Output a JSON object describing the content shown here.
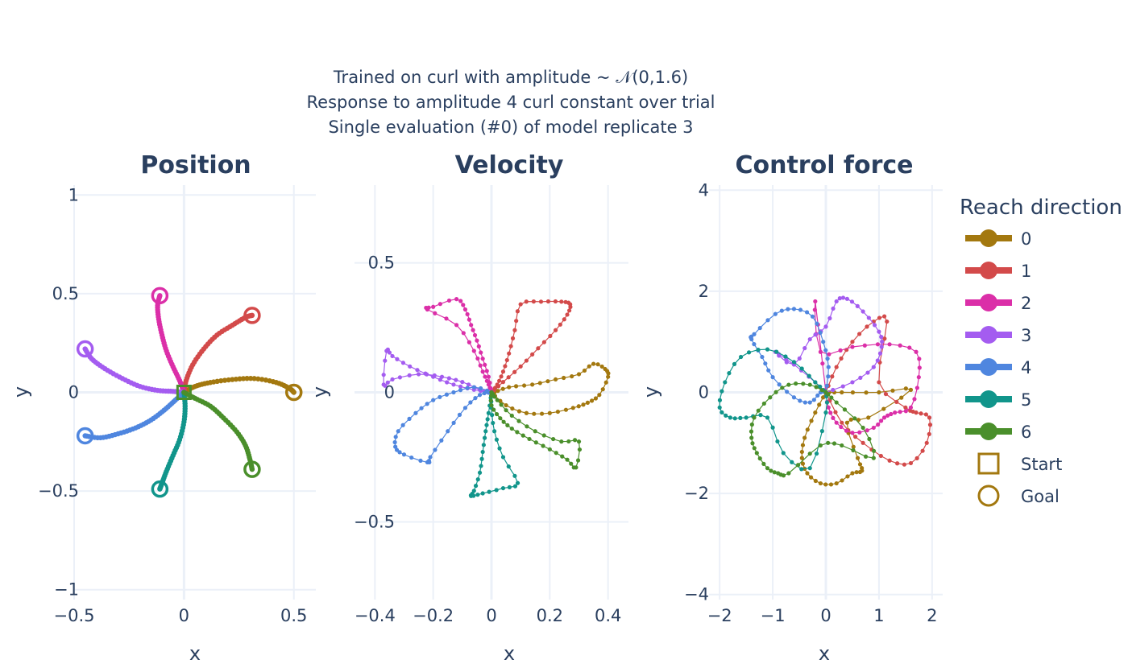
{
  "title_lines": [
    "Trained on curl with amplitude ~ 𝒩(0,1.6)",
    "Response to amplitude 4 curl constant over trial",
    "Single evaluation (#0) of model replicate 3"
  ],
  "colors": {
    "0": "#a3780f",
    "1": "#d34a4a",
    "2": "#db2fa8",
    "3": "#a45cf0",
    "4": "#4f86df",
    "5": "#11958b",
    "6": "#4a8f2b",
    "grid": "#ebf0f8",
    "zeroline": "#ebf0f8",
    "text": "#2a3f5f"
  },
  "legend": {
    "title": "Reach direction",
    "items": [
      {
        "label": "0",
        "symbol": "line",
        "color_key": "0"
      },
      {
        "label": "1",
        "symbol": "line",
        "color_key": "1"
      },
      {
        "label": "2",
        "symbol": "line",
        "color_key": "2"
      },
      {
        "label": "3",
        "symbol": "line",
        "color_key": "3"
      },
      {
        "label": "4",
        "symbol": "line",
        "color_key": "4"
      },
      {
        "label": "5",
        "symbol": "line",
        "color_key": "5"
      },
      {
        "label": "6",
        "symbol": "line",
        "color_key": "6"
      },
      {
        "label": "Start",
        "symbol": "square",
        "color_key": "0"
      },
      {
        "label": "Goal",
        "symbol": "circle",
        "color_key": "0"
      }
    ]
  },
  "chart_data": [
    {
      "type": "line",
      "title": "Position",
      "xlabel": "x",
      "ylabel": "y",
      "xlim": [
        -0.5,
        0.6
      ],
      "ylim": [
        -1.05,
        1.05
      ],
      "xticks": [
        -0.5,
        0,
        0.5
      ],
      "xtick_labels": [
        "−0.5",
        "0",
        "0.5"
      ],
      "yticks": [
        -1,
        -0.5,
        0,
        0.5,
        1
      ],
      "ytick_labels": [
        "−1",
        "−0.5",
        "0",
        "0.5",
        "1"
      ],
      "grid": true,
      "series": [
        {
          "name": "0",
          "x": [
            0,
            0.05,
            0.12,
            0.22,
            0.32,
            0.42,
            0.48,
            0.5
          ],
          "y": [
            0,
            0.03,
            0.05,
            0.065,
            0.07,
            0.05,
            0.02,
            0
          ],
          "goal": [
            0.5,
            0
          ]
        },
        {
          "name": "1",
          "x": [
            0,
            0.01,
            0.04,
            0.09,
            0.15,
            0.22,
            0.28,
            0.31
          ],
          "y": [
            0,
            0.06,
            0.14,
            0.22,
            0.29,
            0.34,
            0.38,
            0.39
          ],
          "goal": [
            0.31,
            0.39
          ]
        },
        {
          "name": "2",
          "x": [
            0,
            -0.02,
            -0.05,
            -0.08,
            -0.1,
            -0.115,
            -0.12,
            -0.11
          ],
          "y": [
            0,
            0.06,
            0.13,
            0.21,
            0.29,
            0.37,
            0.44,
            0.49
          ],
          "goal": [
            -0.11,
            0.49
          ]
        },
        {
          "name": "3",
          "x": [
            0,
            -0.05,
            -0.12,
            -0.2,
            -0.28,
            -0.36,
            -0.42,
            -0.45
          ],
          "y": [
            0,
            0.005,
            0.01,
            0.03,
            0.07,
            0.12,
            0.17,
            0.22
          ],
          "goal": [
            -0.45,
            0.22
          ]
        },
        {
          "name": "4",
          "x": [
            0,
            -0.04,
            -0.09,
            -0.15,
            -0.22,
            -0.3,
            -0.38,
            -0.45
          ],
          "y": [
            0,
            -0.04,
            -0.09,
            -0.14,
            -0.18,
            -0.21,
            -0.23,
            -0.22
          ],
          "goal": [
            -0.45,
            -0.22
          ]
        },
        {
          "name": "5",
          "x": [
            0,
            0.005,
            0.0,
            -0.02,
            -0.05,
            -0.08,
            -0.1,
            -0.11
          ],
          "y": [
            0,
            -0.07,
            -0.15,
            -0.24,
            -0.32,
            -0.4,
            -0.46,
            -0.49
          ],
          "goal": [
            -0.11,
            -0.49
          ]
        },
        {
          "name": "6",
          "x": [
            0,
            0.05,
            0.12,
            0.18,
            0.24,
            0.28,
            0.3,
            0.31
          ],
          "y": [
            0,
            -0.03,
            -0.07,
            -0.13,
            -0.2,
            -0.27,
            -0.34,
            -0.39
          ],
          "goal": [
            0.31,
            -0.39
          ]
        }
      ]
    },
    {
      "type": "line",
      "title": "Velocity",
      "xlabel": "x",
      "ylabel": "y",
      "xlim": [
        -0.47,
        0.47
      ],
      "ylim": [
        -0.8,
        0.8
      ],
      "xticks": [
        -0.4,
        -0.2,
        0,
        0.2,
        0.4
      ],
      "xtick_labels": [
        "−0.4",
        "−0.2",
        "0",
        "0.2",
        "0.4"
      ],
      "yticks": [
        -0.5,
        0,
        0.5
      ],
      "ytick_labels": [
        "−0.5",
        "0",
        "0.5"
      ],
      "grid": true,
      "series": [
        {
          "name": "0",
          "x": [
            0,
            0.05,
            0.12,
            0.2,
            0.28,
            0.33,
            0.37,
            0.4,
            0.39,
            0.35,
            0.3,
            0.22,
            0.14,
            0.06,
            0.01
          ],
          "y": [
            0,
            -0.05,
            -0.08,
            -0.08,
            -0.06,
            -0.04,
            -0.01,
            0.06,
            0.09,
            0.11,
            0.07,
            0.05,
            0.03,
            0.02,
            0
          ]
        },
        {
          "name": "1",
          "x": [
            0,
            0.04,
            0.1,
            0.16,
            0.22,
            0.26,
            0.27,
            0.24,
            0.17,
            0.1,
            0.08,
            0.06,
            0.04,
            0.02,
            0.0
          ],
          "y": [
            0,
            0.04,
            0.1,
            0.17,
            0.24,
            0.3,
            0.34,
            0.35,
            0.35,
            0.34,
            0.24,
            0.15,
            0.08,
            0.03,
            0
          ]
        },
        {
          "name": "2",
          "x": [
            0,
            -0.01,
            -0.03,
            -0.05,
            -0.07,
            -0.09,
            -0.12,
            -0.2,
            -0.22,
            -0.12,
            -0.06,
            -0.03,
            -0.01,
            0.0
          ],
          "y": [
            0,
            0.06,
            0.13,
            0.2,
            0.26,
            0.32,
            0.36,
            0.33,
            0.32,
            0.26,
            0.16,
            0.08,
            0.03,
            0
          ]
        },
        {
          "name": "3",
          "x": [
            0,
            -0.06,
            -0.13,
            -0.2,
            -0.28,
            -0.34,
            -0.36,
            -0.37,
            -0.34,
            -0.25,
            -0.17,
            -0.1,
            -0.04,
            0.0
          ],
          "y": [
            0,
            0.01,
            0.03,
            0.06,
            0.1,
            0.14,
            0.16,
            0.03,
            0.05,
            0.07,
            0.06,
            0.04,
            0.01,
            0
          ]
        },
        {
          "name": "4",
          "x": [
            0,
            -0.06,
            -0.13,
            -0.2,
            -0.26,
            -0.32,
            -0.33,
            -0.3,
            -0.22,
            -0.21,
            -0.15,
            -0.09,
            -0.04,
            0.0
          ],
          "y": [
            0,
            0.02,
            0.0,
            -0.03,
            -0.08,
            -0.15,
            -0.21,
            -0.24,
            -0.27,
            -0.25,
            -0.15,
            -0.06,
            -0.01,
            0
          ]
        },
        {
          "name": "5",
          "x": [
            0,
            -0.01,
            -0.02,
            -0.03,
            -0.04,
            -0.06,
            -0.07,
            -0.03,
            0.04,
            0.09,
            0.04,
            0.01,
            0.0,
            0.0
          ],
          "y": [
            0,
            -0.08,
            -0.15,
            -0.23,
            -0.31,
            -0.38,
            -0.4,
            -0.39,
            -0.37,
            -0.35,
            -0.25,
            -0.15,
            -0.06,
            0
          ]
        },
        {
          "name": "6",
          "x": [
            0,
            0.0,
            0.03,
            0.07,
            0.13,
            0.2,
            0.26,
            0.29,
            0.3,
            0.24,
            0.15,
            0.07,
            0.02,
            0.0
          ],
          "y": [
            0,
            -0.05,
            -0.1,
            -0.14,
            -0.18,
            -0.22,
            -0.26,
            -0.29,
            -0.19,
            -0.19,
            -0.15,
            -0.09,
            -0.03,
            0
          ]
        }
      ]
    },
    {
      "type": "line",
      "title": "Control force",
      "xlabel": "x",
      "ylabel": "y",
      "xlim": [
        -2.2,
        2.2
      ],
      "ylim": [
        -4.1,
        4.1
      ],
      "xticks": [
        -2,
        -1,
        0,
        1,
        2
      ],
      "xtick_labels": [
        "−2",
        "−1",
        "0",
        "1",
        "2"
      ],
      "yticks": [
        -4,
        -2,
        0,
        2,
        4
      ],
      "ytick_labels": [
        "−4",
        "−2",
        "0",
        "2",
        "4"
      ],
      "grid": true,
      "series": [
        {
          "name": "0",
          "x": [
            0,
            -0.2,
            -0.4,
            -0.45,
            -0.35,
            -0.1,
            0.2,
            0.5,
            0.68,
            0.6,
            0.4,
            0.8,
            1.6,
            1.0,
            0.3,
            0
          ],
          "y": [
            0,
            -0.4,
            -0.9,
            -1.3,
            -1.6,
            -1.8,
            -1.8,
            -1.6,
            -1.55,
            -1.3,
            -0.6,
            -0.5,
            0.05,
            0.0,
            0.0,
            0
          ]
        },
        {
          "name": "1",
          "x": [
            0,
            0.3,
            0.7,
            1.2,
            1.6,
            1.9,
            1.95,
            1.7,
            1.5,
            1.0,
            1.15,
            0.9,
            0.5,
            0.2,
            0
          ],
          "y": [
            0,
            -0.6,
            -1.0,
            -1.35,
            -1.4,
            -1.0,
            -0.5,
            -0.4,
            -0.3,
            0.2,
            1.4,
            1.4,
            1.0,
            0.5,
            0
          ]
        },
        {
          "name": "2",
          "x": [
            0,
            0.05,
            0.2,
            0.5,
            0.9,
            1.1,
            1.3,
            1.6,
            1.75,
            1.7,
            1.2,
            0.5,
            -0.1,
            -0.2,
            0
          ],
          "y": [
            0,
            -0.3,
            -0.6,
            -0.8,
            -0.7,
            -0.5,
            -0.4,
            -0.3,
            0.3,
            0.8,
            0.95,
            0.9,
            0.8,
            1.8,
            0
          ]
        },
        {
          "name": "3",
          "x": [
            0,
            0.5,
            0.9,
            1.05,
            1.0,
            0.7,
            0.4,
            0.2,
            0.0,
            -0.3,
            -0.6,
            -0.95,
            -0.6,
            -0.2,
            0
          ],
          "y": [
            0,
            0.2,
            0.5,
            0.9,
            1.2,
            1.6,
            1.85,
            1.8,
            1.3,
            1.05,
            0.55,
            0.8,
            0.55,
            0.2,
            0
          ]
        },
        {
          "name": "4",
          "x": [
            0,
            0.05,
            -0.05,
            -0.25,
            -0.6,
            -0.95,
            -1.35,
            -1.4,
            -1.2,
            -1.0,
            -0.6,
            -0.3,
            -0.1,
            0
          ],
          "y": [
            0,
            0.5,
            1.0,
            1.5,
            1.65,
            1.55,
            1.15,
            1.05,
            0.7,
            0.3,
            -0.1,
            -0.2,
            0.0,
            0
          ]
        },
        {
          "name": "5",
          "x": [
            0,
            -0.2,
            -0.6,
            -1.1,
            -1.6,
            -1.9,
            -2.0,
            -1.8,
            -1.5,
            -1.1,
            -0.8,
            -0.3,
            0.0,
            0
          ],
          "y": [
            0,
            0.2,
            0.6,
            0.85,
            0.7,
            0.2,
            -0.3,
            -0.5,
            -0.5,
            -0.5,
            -1.2,
            -1.5,
            -0.4,
            0
          ]
        },
        {
          "name": "6",
          "x": [
            0,
            -0.3,
            -0.7,
            -1.05,
            -1.35,
            -1.4,
            -1.3,
            -1.1,
            -0.9,
            -0.7,
            -0.1,
            0.3,
            0.9,
            0.7,
            0.2,
            0
          ],
          "y": [
            0,
            0.15,
            0.15,
            -0.1,
            -0.5,
            -0.9,
            -1.2,
            -1.5,
            -1.6,
            -1.6,
            -1.05,
            -1.05,
            -1.3,
            -0.7,
            -0.2,
            0
          ]
        }
      ]
    }
  ]
}
